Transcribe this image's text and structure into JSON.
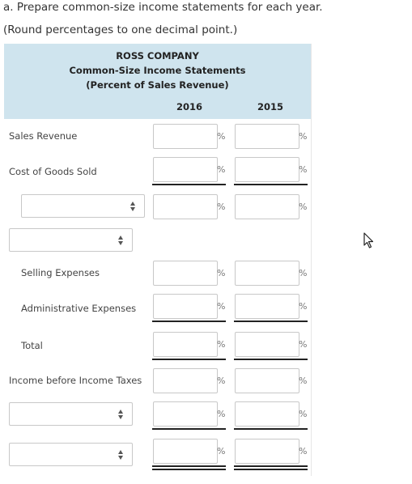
{
  "instructions": {
    "line1": "a. Prepare common-size income statements for each year.",
    "line2": "(Round percentages to one decimal point.)"
  },
  "statement": {
    "company": "ROSS COMPANY",
    "title": "Common-Size Income Statements",
    "subtitle": "(Percent of Sales Revenue)",
    "col_2016": "2016",
    "col_2015": "2015",
    "percent_symbol": "%"
  },
  "rows": {
    "sales_revenue": "Sales Revenue",
    "cost_of_goods_sold": "Cost of Goods Sold",
    "selling_expenses": "Selling Expenses",
    "administrative_expenses": "Administrative Expenses",
    "total": "Total",
    "income_before_taxes": "Income before Income Taxes"
  },
  "colors": {
    "header_bg": "#cfe4ee",
    "input_border": "#c8c8c8",
    "rule": "#222222"
  }
}
